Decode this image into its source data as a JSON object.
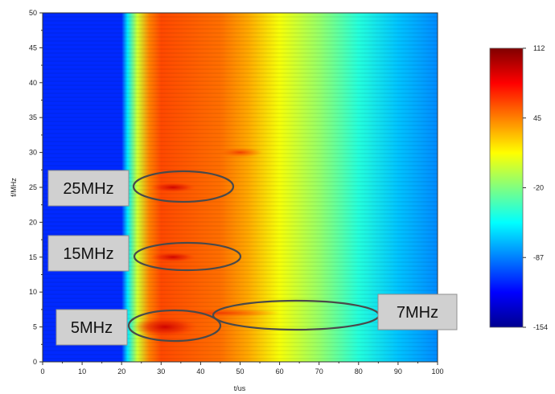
{
  "chart_data": {
    "type": "heatmap",
    "title": "",
    "xlabel": "t/us",
    "ylabel": "f/MHz",
    "xlim": [
      0,
      100
    ],
    "ylim": [
      0,
      50
    ],
    "x_ticks": [
      "0",
      "10",
      "20",
      "30",
      "40",
      "50",
      "60",
      "70",
      "80",
      "90",
      "100"
    ],
    "y_ticks": [
      "0",
      "5",
      "10",
      "15",
      "20",
      "25",
      "30",
      "35",
      "40",
      "45",
      "50"
    ],
    "grid": false,
    "colorbar": {
      "min": -154,
      "max": 112,
      "tick_labels": [
        "112",
        "45",
        "-20",
        "-87",
        "-154"
      ],
      "colors": [
        "#00008f",
        "#0000ff",
        "#0080ff",
        "#00ffff",
        "#80ff80",
        "#ffff00",
        "#ff8000",
        "#ff0000",
        "#800000"
      ]
    },
    "value_bands_by_time": [
      {
        "t": 0,
        "value": -110
      },
      {
        "t": 20,
        "value": -110
      },
      {
        "t": 21.5,
        "value": -60
      },
      {
        "t": 24,
        "value": 0
      },
      {
        "t": 27,
        "value": 45
      },
      {
        "t": 30,
        "value": 60
      },
      {
        "t": 45,
        "value": 50
      },
      {
        "t": 52,
        "value": 35
      },
      {
        "t": 60,
        "value": 10
      },
      {
        "t": 70,
        "value": -15
      },
      {
        "t": 80,
        "value": -45
      },
      {
        "t": 90,
        "value": -70
      },
      {
        "t": 100,
        "value": -85
      }
    ],
    "hotspots": [
      {
        "t": 31,
        "f": 5,
        "value": 112
      },
      {
        "t": 33,
        "f": 15,
        "value": 90
      },
      {
        "t": 33,
        "f": 25,
        "value": 90
      },
      {
        "t": 50,
        "f": 30,
        "value": 75
      },
      {
        "t": 45,
        "f": 7,
        "value": 80
      }
    ]
  },
  "annotations": [
    {
      "label": "25MHz",
      "t": 36,
      "f": 25
    },
    {
      "label": "15MHz",
      "t": 37,
      "f": 15
    },
    {
      "label": "5MHz",
      "t": 31,
      "f": 5
    },
    {
      "label": "7MHz",
      "t": 63,
      "f": 6.5
    }
  ]
}
